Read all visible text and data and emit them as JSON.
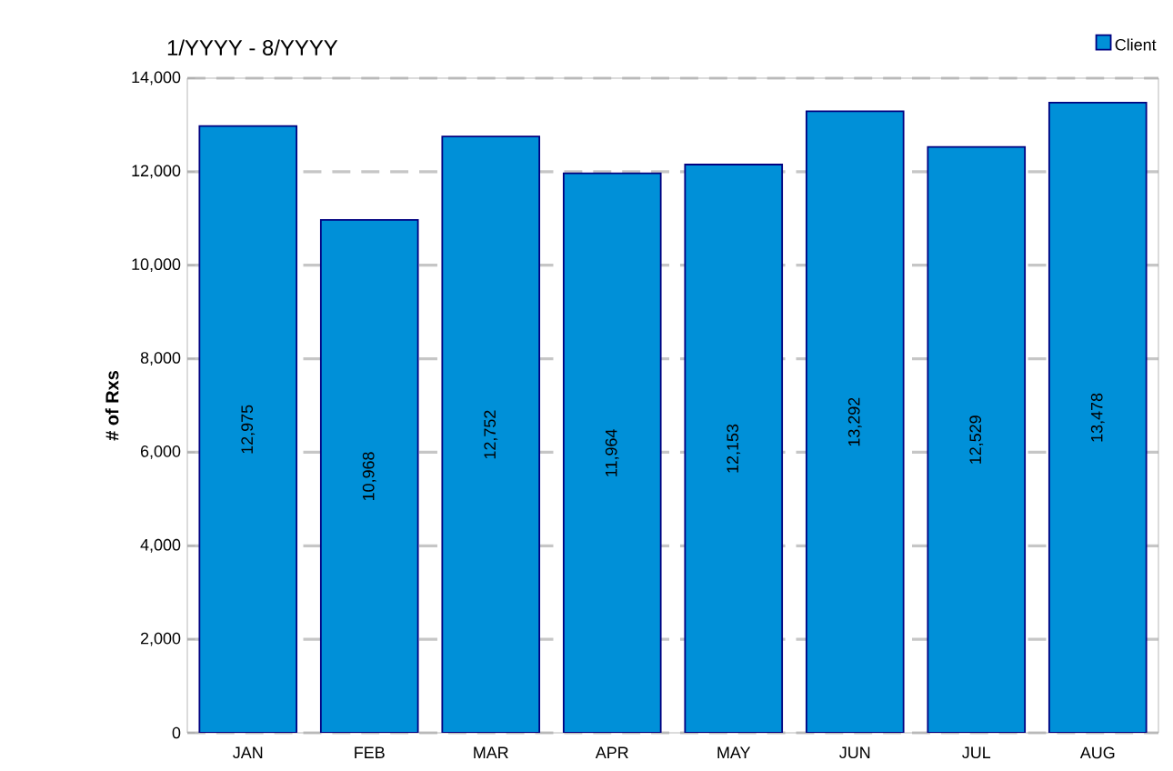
{
  "chart_data": {
    "type": "bar",
    "title": "1/YYYY - 8/YYYY",
    "ylabel": "# of Rxs",
    "categories": [
      "JAN",
      "FEB",
      "MAR",
      "APR",
      "MAY",
      "JUN",
      "JUL",
      "AUG"
    ],
    "series": [
      {
        "name": "Client",
        "color": "#0090d8",
        "values": [
          12975,
          10968,
          12752,
          11964,
          12153,
          13292,
          12529,
          13478
        ],
        "value_labels": [
          "12,975",
          "10,968",
          "12,752",
          "11,964",
          "12,153",
          "13,292",
          "12,529",
          "13,478"
        ]
      }
    ],
    "ylim": [
      0,
      14000
    ],
    "yticks": [
      {
        "value": 0,
        "label": "0"
      },
      {
        "value": 2000,
        "label": "2,000"
      },
      {
        "value": 4000,
        "label": "4,000"
      },
      {
        "value": 6000,
        "label": "6,000"
      },
      {
        "value": 8000,
        "label": "8,000"
      },
      {
        "value": 10000,
        "label": "10,000"
      },
      {
        "value": 12000,
        "label": "12,000"
      },
      {
        "value": 14000,
        "label": "14,000"
      }
    ],
    "grid": "y",
    "legend": "top right"
  }
}
